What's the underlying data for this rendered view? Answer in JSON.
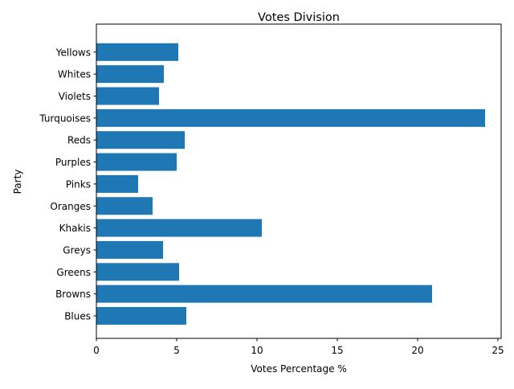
{
  "chart_data": {
    "type": "bar",
    "orientation": "horizontal",
    "title": "Votes Division",
    "xlabel": "Votes Percentage %",
    "ylabel": "Party",
    "categories": [
      "Blues",
      "Browns",
      "Greens",
      "Greys",
      "Khakis",
      "Oranges",
      "Pinks",
      "Purples",
      "Reds",
      "Turquoises",
      "Violets",
      "Whites",
      "Yellows"
    ],
    "values": [
      5.6,
      20.9,
      5.15,
      4.15,
      10.3,
      3.5,
      2.6,
      5.0,
      5.5,
      24.2,
      3.9,
      4.2,
      5.1
    ],
    "xlim": [
      0,
      25.4
    ],
    "xticks": [
      0,
      5,
      10,
      15,
      20,
      25
    ],
    "grid": false,
    "bar_color": "#1f77b4"
  }
}
